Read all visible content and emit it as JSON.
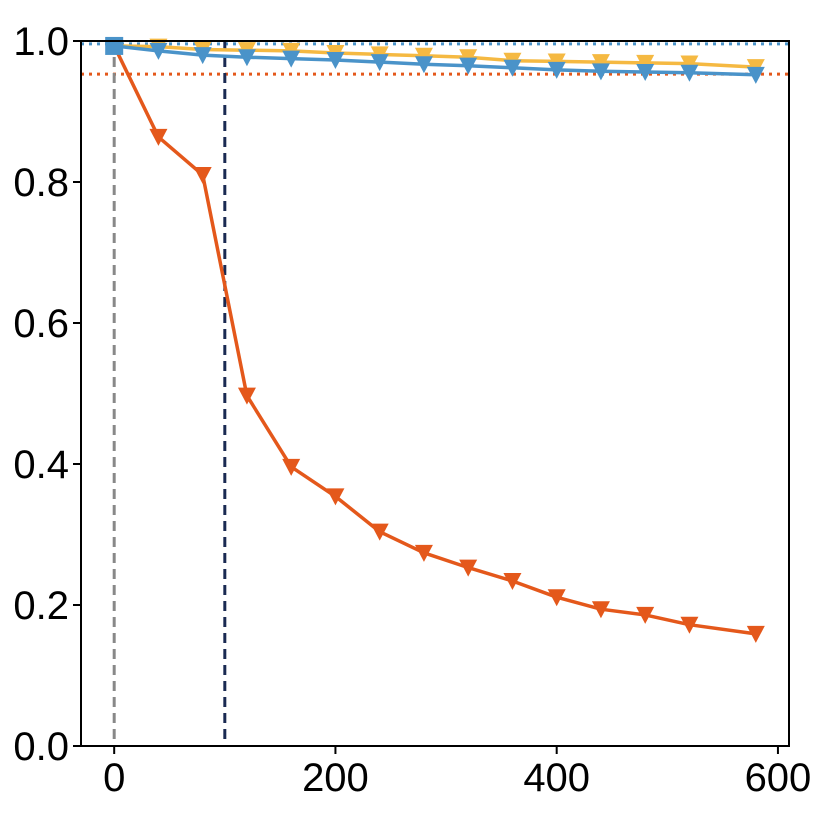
{
  "chart_data": {
    "type": "line",
    "x": [
      0,
      40,
      80,
      120,
      160,
      200,
      240,
      280,
      320,
      360,
      400,
      440,
      480,
      520,
      580
    ],
    "xlim": [
      -30,
      610
    ],
    "ylim": [
      0,
      1.0
    ],
    "xticks": [
      0,
      200,
      400,
      600
    ],
    "yticks": [
      0.0,
      0.2,
      0.4,
      0.6,
      0.8,
      1.0
    ],
    "xtick_labels": [
      "0",
      "200",
      "400",
      "600"
    ],
    "ytick_labels": [
      "0.0",
      "0.2",
      "0.4",
      "0.6",
      "0.8",
      "1.0"
    ],
    "grid": false,
    "series": [
      {
        "color": "#f5b942",
        "marker": "triangle-down",
        "values": [
          0.993,
          0.992,
          0.988,
          0.987,
          0.986,
          0.983,
          0.981,
          0.979,
          0.977,
          0.972,
          0.971,
          0.97,
          0.969,
          0.968,
          0.963
        ]
      },
      {
        "color": "#4a93c9",
        "marker": "triangle-down",
        "values": [
          0.993,
          0.986,
          0.98,
          0.977,
          0.975,
          0.973,
          0.97,
          0.967,
          0.965,
          0.962,
          0.959,
          0.957,
          0.956,
          0.955,
          0.952
        ]
      },
      {
        "color": "#e4581b",
        "marker": "triangle-down",
        "values": [
          0.993,
          0.864,
          0.81,
          0.497,
          0.396,
          0.354,
          0.304,
          0.274,
          0.253,
          0.234,
          0.211,
          0.194,
          0.186,
          0.172,
          0.159
        ]
      }
    ],
    "start_marker": {
      "x": 0,
      "y": 0.993,
      "shape": "square",
      "color": "#4a93c9"
    },
    "reference_lines": [
      {
        "orientation": "horizontal",
        "value": 0.996,
        "style": "dotted",
        "color": "#4a93c9"
      },
      {
        "orientation": "horizontal",
        "value": 0.953,
        "style": "dotted",
        "color": "#e4581b"
      },
      {
        "orientation": "vertical",
        "value": 0,
        "style": "dashed",
        "color": "#888888"
      },
      {
        "orientation": "vertical",
        "value": 100,
        "style": "dashed",
        "color": "#1a2a52"
      }
    ]
  }
}
